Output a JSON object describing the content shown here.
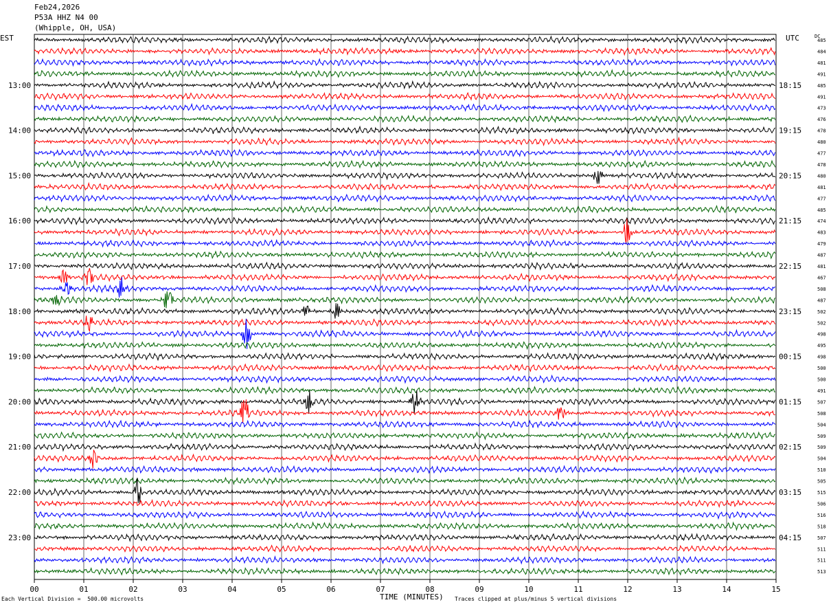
{
  "header": {
    "date": "Feb24,2026",
    "station": "P53A HHZ N4 00",
    "location": "(Whipple, OH, USA)"
  },
  "left_tz": "EST",
  "right_tz": "UTC",
  "dc_label": "DC",
  "footer": {
    "left_note": "Each Vertical Division =  500.00 microvolts",
    "center_title": "TIME (MINUTES)",
    "right_note": "Traces clipped at plus/minus 5 vertical divisions"
  },
  "chart_data": {
    "type": "line",
    "title": "Feb24,2026 P53A HHZ N4 00 (Whipple, OH, USA)",
    "xlabel": "TIME (MINUTES)",
    "xlim": [
      0,
      15
    ],
    "x_ticks": [
      "00",
      "01",
      "02",
      "03",
      "04",
      "05",
      "06",
      "07",
      "08",
      "09",
      "10",
      "11",
      "12",
      "13",
      "14",
      "15"
    ],
    "trace_count": 48,
    "trace_colors": [
      "#000000",
      "#ff0000",
      "#0000ff",
      "#006400"
    ],
    "left_hour_labels": [
      "13:00",
      "14:00",
      "15:00",
      "16:00",
      "17:00",
      "18:00",
      "19:00",
      "20:00",
      "21:00",
      "22:00",
      "23:00"
    ],
    "right_hour_labels": [
      "18:15",
      "19:15",
      "20:15",
      "21:15",
      "22:15",
      "23:15",
      "00:15",
      "01:15",
      "02:15",
      "03:15",
      "04:15"
    ],
    "dc_offsets": [
      485,
      484,
      481,
      491,
      485,
      491,
      473,
      476,
      478,
      480,
      477,
      478,
      480,
      481,
      477,
      485,
      474,
      483,
      479,
      487,
      481,
      467,
      508,
      487,
      502,
      502,
      498,
      495,
      498,
      500,
      500,
      491,
      507,
      508,
      504,
      509,
      509,
      504,
      510,
      505,
      515,
      506,
      516,
      518,
      507,
      511,
      511,
      513
    ],
    "events": [
      {
        "trace": 12,
        "minute": 11.4,
        "amp": 2.2
      },
      {
        "trace": 17,
        "minute": 12.0,
        "amp": 3.0
      },
      {
        "trace": 21,
        "minute": 0.6,
        "amp": 2.0
      },
      {
        "trace": 21,
        "minute": 1.1,
        "amp": 1.7
      },
      {
        "trace": 22,
        "minute": 0.65,
        "amp": 1.6
      },
      {
        "trace": 22,
        "minute": 1.75,
        "amp": 2.2
      },
      {
        "trace": 23,
        "minute": 0.45,
        "amp": 1.3
      },
      {
        "trace": 23,
        "minute": 2.7,
        "amp": 2.5
      },
      {
        "trace": 24,
        "minute": 5.5,
        "amp": 1.6
      },
      {
        "trace": 24,
        "minute": 6.1,
        "amp": 2.0
      },
      {
        "trace": 25,
        "minute": 1.1,
        "amp": 1.6
      },
      {
        "trace": 26,
        "minute": 4.3,
        "amp": 3.5
      },
      {
        "trace": 32,
        "minute": 5.55,
        "amp": 2.4
      },
      {
        "trace": 32,
        "minute": 7.7,
        "amp": 3.0
      },
      {
        "trace": 33,
        "minute": 4.25,
        "amp": 3.2
      },
      {
        "trace": 33,
        "minute": 10.65,
        "amp": 2.2
      },
      {
        "trace": 37,
        "minute": 1.2,
        "amp": 2.6
      },
      {
        "trace": 40,
        "minute": 2.1,
        "amp": 3.2
      }
    ]
  }
}
